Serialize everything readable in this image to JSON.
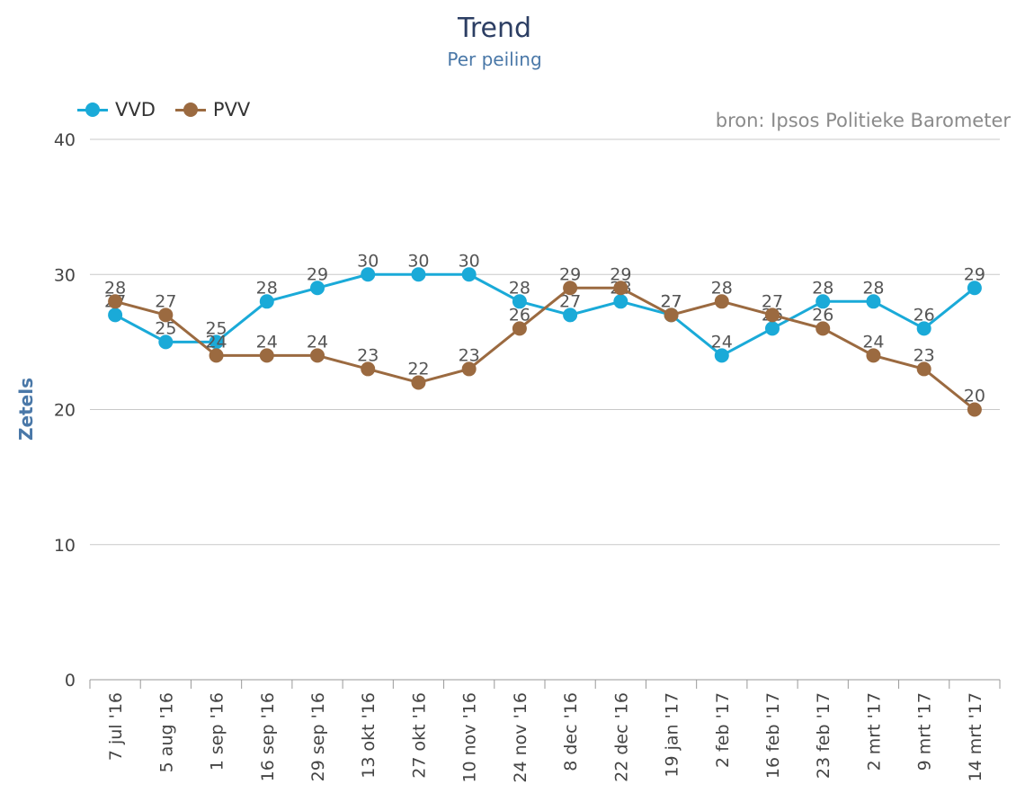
{
  "chart_data": {
    "type": "line",
    "title": "Trend",
    "subtitle": "Per peiling",
    "source": "bron: Ipsos Politieke Barometer",
    "ylabel": "Zetels",
    "ylim": [
      0,
      40
    ],
    "yticks": [
      "0",
      "10",
      "20",
      "30",
      "40"
    ],
    "grid": true,
    "legend_position": "top-left",
    "categories": [
      "7 jul '16",
      "5 aug '16",
      "1 sep '16",
      "16 sep '16",
      "29 sep '16",
      "13 okt '16",
      "27 okt '16",
      "10 nov '16",
      "24 nov '16",
      "8 dec '16",
      "22 dec '16",
      "19 jan '17",
      "2 feb '17",
      "16 feb '17",
      "23 feb '17",
      "2 mrt '17",
      "9 mrt '17",
      "14 mrt '17"
    ],
    "series": [
      {
        "name": "VVD",
        "color": "#1aaad8",
        "values": [
          27,
          25,
          25,
          28,
          29,
          30,
          30,
          30,
          28,
          27,
          28,
          27,
          24,
          26,
          28,
          28,
          26,
          29
        ]
      },
      {
        "name": "PVV",
        "color": "#9b6a40",
        "values": [
          28,
          27,
          24,
          24,
          24,
          23,
          22,
          23,
          26,
          29,
          29,
          27,
          28,
          27,
          26,
          24,
          23,
          20
        ]
      }
    ]
  }
}
